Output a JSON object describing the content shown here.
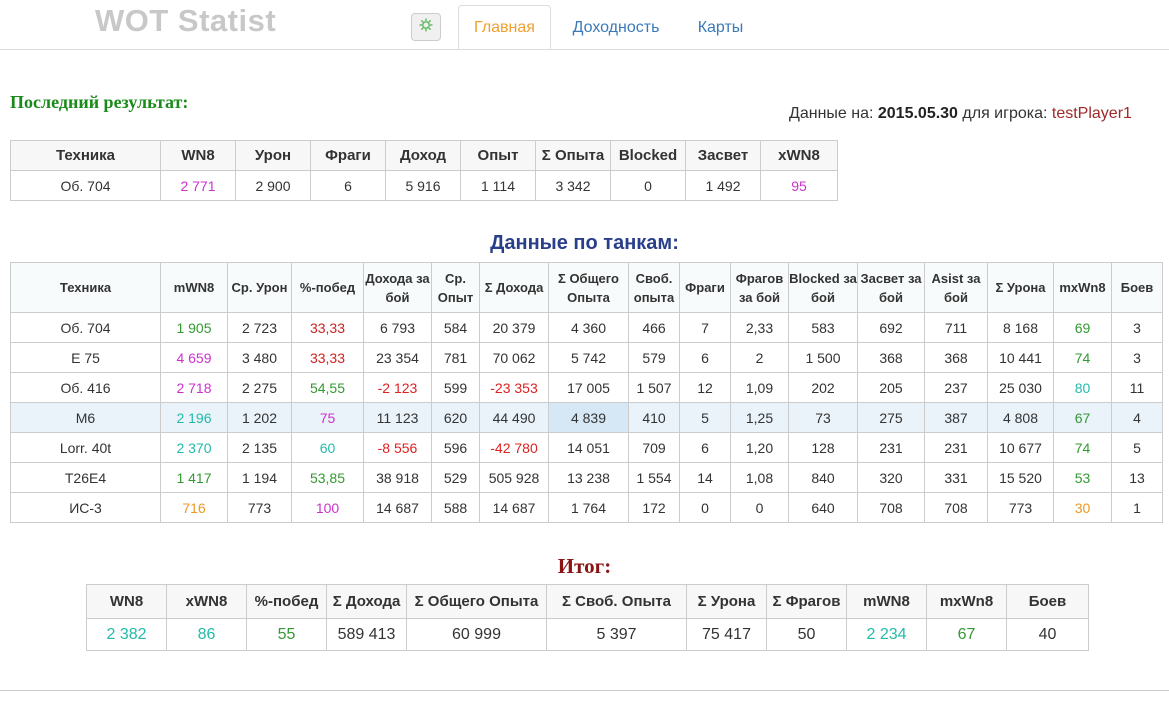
{
  "app": {
    "title": "WOT Statist"
  },
  "nav": {
    "tabs": [
      {
        "label": "Главная",
        "active": true
      },
      {
        "label": "Доходность",
        "active": false
      },
      {
        "label": "Карты",
        "active": false
      }
    ],
    "icon": "gear-icon"
  },
  "last_result": {
    "title": "Последний результат:",
    "info": {
      "prefix": "Данные на: ",
      "date": "2015.05.30",
      "middle": " для игрока: ",
      "player": "testPlayer1"
    },
    "headers": [
      "Техника",
      "WN8",
      "Урон",
      "Фраги",
      "Доход",
      "Опыт",
      "Σ Опыта",
      "Blocked",
      "Засвет",
      "xWN8"
    ],
    "row": [
      "Об. 704",
      "2 771",
      "2 900",
      "6",
      "5 916",
      "1 114",
      "3 342",
      "0",
      "1 492",
      "95"
    ]
  },
  "tanks": {
    "title": "Данные по танкам:",
    "headers": [
      "Техника",
      "mWN8",
      "Ср. Урон",
      "%-побед",
      "Дохода за бой",
      "Ср. Опыт",
      "Σ Дохода",
      "Σ Общего Опыта",
      "Своб. опыта",
      "Фраги",
      "Фрагов за бой",
      "Blocked за бой",
      "Засвет за бой",
      "Asist за бой",
      "Σ Урона",
      "mxWn8",
      "Боев"
    ],
    "rows": [
      [
        "Об. 704",
        "1 905",
        "2 723",
        "33,33",
        "6 793",
        "584",
        "20 379",
        "4 360",
        "466",
        "7",
        "2,33",
        "583",
        "692",
        "711",
        "8 168",
        "69",
        "3"
      ],
      [
        "E 75",
        "4 659",
        "3 480",
        "33,33",
        "23 354",
        "781",
        "70 062",
        "5 742",
        "579",
        "6",
        "2",
        "1 500",
        "368",
        "368",
        "10 441",
        "74",
        "3"
      ],
      [
        "Об. 416",
        "2 718",
        "2 275",
        "54,55",
        "-2 123",
        "599",
        "-23 353",
        "17 005",
        "1 507",
        "12",
        "1,09",
        "202",
        "205",
        "237",
        "25 030",
        "80",
        "11"
      ],
      [
        "M6",
        "2 196",
        "1 202",
        "75",
        "11 123",
        "620",
        "44 490",
        "4 839",
        "410",
        "5",
        "1,25",
        "73",
        "275",
        "387",
        "4 808",
        "67",
        "4"
      ],
      [
        "Lorr. 40t",
        "2 370",
        "2 135",
        "60",
        "-8 556",
        "596",
        "-42 780",
        "14 051",
        "709",
        "6",
        "1,20",
        "128",
        "231",
        "231",
        "10 677",
        "74",
        "5"
      ],
      [
        "T26E4",
        "1 417",
        "1 194",
        "53,85",
        "38 918",
        "529",
        "505 928",
        "13 238",
        "1 554",
        "14",
        "1,08",
        "840",
        "320",
        "331",
        "15 520",
        "53",
        "13"
      ],
      [
        "ИС-3",
        "716",
        "773",
        "100",
        "14 687",
        "588",
        "14 687",
        "1 764",
        "172",
        "0",
        "0",
        "640",
        "708",
        "708",
        "773",
        "30",
        "1"
      ]
    ],
    "highlight_row": 3
  },
  "total": {
    "title": "Итог:",
    "headers": [
      "WN8",
      "xWN8",
      "%-побед",
      "Σ Дохода",
      "Σ Общего Опыта",
      "Σ Своб. Опыта",
      "Σ Урона",
      "Σ Фрагов",
      "mWN8",
      "mxWn8",
      "Боев"
    ],
    "row": [
      "2 382",
      "86",
      "55",
      "589 413",
      "60 999",
      "5 397",
      "75 417",
      "50",
      "2 234",
      "67",
      "40"
    ]
  },
  "colors": {
    "magenta": "#cc33cc",
    "green": "#339933",
    "teal": "#22bbaa",
    "orange": "#ee9922",
    "red": "#dd2222",
    "title_green": "#1a8a1a",
    "title_blue": "#2a3f8a",
    "title_red": "#8a1414"
  }
}
